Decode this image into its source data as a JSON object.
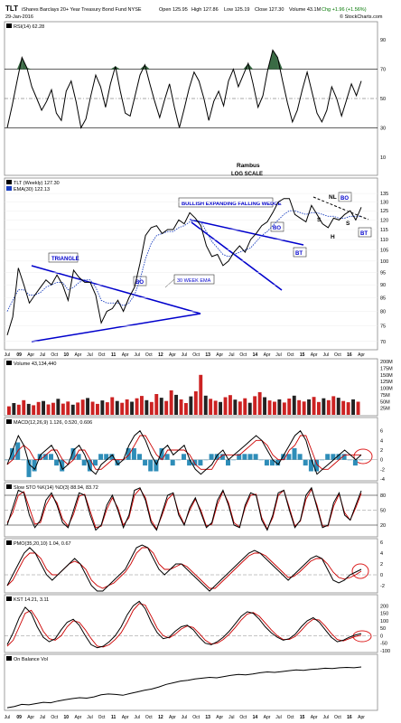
{
  "header": {
    "ticker": "TLT",
    "fund_name": "iShares Barclays 20+ Year Treasury Bond Fund NYSE",
    "date": "29-Jan-2016",
    "open": "Open 125.95",
    "high": "High 127.86",
    "low": "Low 125.19",
    "close": "Close 127.30",
    "volume": "Volume 43.1M",
    "change": "Chg +1.96 (+1.56%)",
    "credit": "© StockCharts.com"
  },
  "annotations": {
    "author": "Rambus",
    "scale": "LOG SCALE",
    "triangle": "TRIANGLE",
    "bullish_wedge": "BULLISH EXPANDING FALLING WEDGE",
    "ema_label": "30 WEEK EMA",
    "bo1": "BO",
    "bo2": "BO",
    "bo3": "BO",
    "bt1": "BT",
    "bt2": "BT",
    "hs_h": "H",
    "hs_s1": "S",
    "hs_s2": "S",
    "hs_nl": "NL"
  },
  "colors": {
    "price": "#000000",
    "trendline": "#0000cc",
    "ema": "#1a3fbf",
    "signal": "#cc0000",
    "histogram": "#2e8db8",
    "vol_up": "#222222",
    "vol_down": "#cc2222",
    "rsi_fill": "#3a6b45",
    "circle": "#dd2222"
  },
  "chart_data": [
    {
      "type": "line",
      "title": "RSI(14) 62.28",
      "ylim": [
        0,
        100
      ],
      "reference_lines": [
        70,
        50,
        30
      ],
      "y_ticks": [
        "90",
        "70",
        "50",
        "30",
        "10"
      ],
      "series": [
        {
          "name": "RSI(14)",
          "values": [
            30,
            45,
            62,
            78,
            71,
            58,
            50,
            42,
            48,
            56,
            40,
            35,
            55,
            62,
            48,
            30,
            36,
            52,
            66,
            58,
            44,
            60,
            72,
            55,
            40,
            38,
            52,
            66,
            73,
            60,
            48,
            37,
            49,
            60,
            44,
            30,
            43,
            57,
            68,
            62,
            50,
            35,
            48,
            55,
            45,
            62,
            70,
            58,
            66,
            74,
            60,
            44,
            52,
            70,
            83,
            78,
            62,
            47,
            34,
            42,
            56,
            68,
            54,
            40,
            34,
            42,
            58,
            50,
            38,
            49,
            60,
            52,
            62
          ]
        }
      ]
    },
    {
      "type": "line",
      "title": "TLT (Weekly) 127.30",
      "subtitle": "EMA(30) 122.13",
      "scale": "log",
      "ylim": [
        68,
        140
      ],
      "y_ticks": [
        "135",
        "130",
        "125",
        "120",
        "115",
        "110",
        "105",
        "100",
        "95",
        "90",
        "85",
        "80",
        "75",
        "70"
      ],
      "x_tick_labels": [
        "Jul",
        "09",
        "Apr",
        "Jul",
        "Oct",
        "10",
        "Apr",
        "Jul",
        "Oct",
        "11",
        "Apr",
        "Jul",
        "Oct",
        "12",
        "Apr",
        "Jul",
        "Oct",
        "13",
        "Apr",
        "Jul",
        "Oct",
        "14",
        "Apr",
        "Jul",
        "Oct",
        "15",
        "Apr",
        "Jul",
        "Oct",
        "16",
        "Apr"
      ],
      "series": [
        {
          "name": "TLT (Weekly)",
          "values": [
            72,
            78,
            97,
            90,
            83,
            86,
            89,
            92,
            90,
            94,
            90,
            84,
            96,
            93,
            91,
            91,
            86,
            76,
            80,
            81,
            84,
            80,
            85,
            89,
            99,
            112,
            116,
            117,
            113,
            115,
            115,
            120,
            118,
            124,
            121,
            117,
            107,
            102,
            103,
            98,
            100,
            104,
            107,
            104,
            110,
            113,
            117,
            119,
            124,
            130,
            132,
            132,
            123,
            121,
            119,
            128,
            123,
            118,
            116,
            121,
            120,
            123,
            125,
            120,
            127
          ]
        },
        {
          "name": "EMA(30)",
          "values": [
            80,
            84,
            88,
            88,
            86,
            86,
            87,
            89,
            90,
            91,
            91,
            88,
            89,
            91,
            92,
            92,
            89,
            84,
            83,
            83,
            83,
            82,
            83,
            86,
            92,
            101,
            108,
            112,
            113,
            114,
            114,
            116,
            117,
            119,
            120,
            119,
            114,
            109,
            106,
            103,
            102,
            103,
            104,
            105,
            106,
            109,
            112,
            114,
            117,
            120,
            123,
            125,
            125,
            124,
            123,
            124,
            124,
            123,
            122,
            122,
            121,
            121,
            122,
            122,
            122
          ]
        }
      ]
    },
    {
      "type": "bar",
      "title": "Volume 43,134,440",
      "ylim": [
        0,
        200
      ],
      "y_ticks": [
        "200M",
        "175M",
        "150M",
        "125M",
        "100M",
        "75M",
        "50M",
        "25M"
      ],
      "series": [
        {
          "name": "Volume",
          "values": [
            32,
            44,
            38,
            55,
            41,
            36,
            48,
            52,
            39,
            45,
            60,
            42,
            50,
            38,
            46,
            57,
            63,
            49,
            41,
            54,
            47,
            66,
            52,
            45,
            58,
            49,
            62,
            71,
            55,
            48,
            78,
            64,
            52,
            92,
            75,
            58,
            44,
            69,
            88,
            150,
            72,
            60,
            53,
            48,
            66,
            74,
            57,
            50,
            62,
            45,
            70,
            85,
            66,
            54,
            49,
            58,
            46,
            61,
            72,
            55,
            50,
            58,
            67,
            48,
            62,
            55,
            70,
            64,
            52,
            47,
            58,
            49
          ]
        }
      ]
    },
    {
      "type": "line",
      "title": "MACD(12,26,9) 1.126, 0.520, 0.606",
      "ylim": [
        -4,
        8
      ],
      "y_ticks": [
        "6",
        "4",
        "2",
        "0",
        "-2",
        "-4"
      ],
      "series": [
        {
          "name": "MACD",
          "values": [
            -1,
            2,
            5,
            3,
            -1,
            -2,
            1,
            2,
            3,
            1,
            -2,
            -1,
            2,
            3,
            1,
            -2,
            -3,
            -1,
            0,
            1,
            -1,
            0,
            3,
            5,
            6,
            4,
            1,
            -1,
            2,
            3,
            1,
            2,
            3,
            0,
            -2,
            -3,
            -2,
            -1,
            1,
            2,
            0,
            1,
            2,
            3,
            4,
            5,
            4,
            2,
            0,
            -1,
            1,
            3,
            5,
            6,
            4,
            0,
            -3,
            -2,
            -1,
            0,
            1,
            2,
            1,
            0,
            1
          ]
        },
        {
          "name": "Signal",
          "values": [
            -1,
            0,
            2,
            3,
            2,
            0,
            0,
            1,
            2,
            2,
            0,
            -1,
            0,
            2,
            2,
            0,
            -2,
            -2,
            -1,
            0,
            0,
            0,
            1,
            3,
            5,
            5,
            3,
            1,
            0,
            2,
            2,
            2,
            2,
            1,
            -1,
            -2,
            -2,
            -2,
            0,
            1,
            1,
            1,
            1,
            2,
            3,
            4,
            4,
            3,
            1,
            0,
            0,
            2,
            3,
            5,
            5,
            2,
            -1,
            -2,
            -2,
            -1,
            0,
            1,
            1,
            1,
            1
          ]
        }
      ]
    },
    {
      "type": "line",
      "title": "Slow STO %K(14) %D(3) 88.94, 83.72",
      "ylim": [
        0,
        100
      ],
      "y_ticks": [
        "80",
        "50",
        "20"
      ],
      "series": [
        {
          "name": "%K",
          "values": [
            20,
            55,
            90,
            85,
            40,
            15,
            30,
            70,
            85,
            60,
            25,
            15,
            50,
            85,
            80,
            40,
            10,
            20,
            60,
            80,
            50,
            15,
            40,
            90,
            95,
            70,
            25,
            10,
            45,
            80,
            85,
            40,
            20,
            55,
            75,
            45,
            15,
            25,
            70,
            90,
            60,
            20,
            15,
            60,
            85,
            80,
            30,
            10,
            40,
            85,
            90,
            50,
            15,
            30,
            80,
            95,
            55,
            15,
            20,
            65,
            85,
            40,
            30,
            60,
            89
          ]
        },
        {
          "name": "%D",
          "values": [
            25,
            45,
            80,
            87,
            55,
            22,
            25,
            60,
            80,
            65,
            32,
            18,
            42,
            78,
            82,
            48,
            15,
            18,
            52,
            75,
            55,
            20,
            35,
            80,
            93,
            75,
            30,
            12,
            40,
            72,
            83,
            45,
            22,
            50,
            72,
            50,
            18,
            22,
            62,
            88,
            65,
            25,
            16,
            55,
            80,
            82,
            35,
            12,
            35,
            80,
            90,
            55,
            18,
            28,
            72,
            92,
            60,
            18,
            18,
            58,
            82,
            45,
            30,
            55,
            84
          ]
        }
      ]
    },
    {
      "type": "line",
      "title": "PMO(35,20,10) 1.04, 0.67",
      "ylim": [
        -3,
        6
      ],
      "y_ticks": [
        "6",
        "4",
        "2",
        "0",
        "-2"
      ],
      "series": [
        {
          "name": "PMO",
          "values": [
            -2,
            0,
            2,
            4,
            5,
            4,
            2,
            0,
            -1,
            0,
            1,
            2,
            3,
            2,
            0,
            -2,
            -3,
            -3,
            -2,
            -1,
            0,
            1,
            3,
            5,
            5.5,
            5,
            3,
            1,
            0,
            1,
            2,
            2,
            1,
            0,
            -1,
            -2,
            -3,
            -2,
            -1,
            0,
            1,
            2,
            3,
            4,
            4.5,
            4,
            3,
            2,
            1,
            0,
            -1,
            0,
            1,
            2,
            3,
            3.5,
            3,
            1,
            -1,
            -1.5,
            -1,
            0,
            0.5,
            1
          ]
        },
        {
          "name": "Signal",
          "values": [
            -2,
            -1,
            1,
            3,
            4,
            4,
            3,
            1,
            0,
            0,
            1,
            2,
            2.5,
            2,
            1,
            -1,
            -2,
            -2.5,
            -2,
            -1.5,
            -0.5,
            0.5,
            2,
            4,
            5,
            5,
            4,
            2,
            1,
            1,
            1.5,
            2,
            1.5,
            0.5,
            -0.5,
            -1.5,
            -2.5,
            -2.5,
            -1.5,
            -0.5,
            0.5,
            1.5,
            2.5,
            3.5,
            4,
            4,
            3.5,
            2.5,
            1.5,
            0.5,
            -0.5,
            -0.3,
            0.5,
            1.5,
            2.5,
            3,
            3,
            2,
            0.5,
            -0.5,
            -0.8,
            -0.5,
            0,
            0.67
          ]
        }
      ]
    },
    {
      "type": "line",
      "title": "KST 14.21, 3.11",
      "ylim": [
        -100,
        250
      ],
      "y_ticks": [
        "200",
        "150",
        "100",
        "50",
        "0",
        "-50",
        "-100"
      ],
      "series": [
        {
          "name": "KST",
          "values": [
            -60,
            20,
            120,
            190,
            150,
            60,
            -10,
            -40,
            -20,
            40,
            90,
            110,
            70,
            0,
            -60,
            -80,
            -70,
            -40,
            0,
            60,
            140,
            200,
            230,
            180,
            90,
            20,
            -20,
            -10,
            30,
            60,
            70,
            40,
            -10,
            -50,
            -60,
            -40,
            -10,
            30,
            80,
            130,
            160,
            150,
            110,
            60,
            20,
            -10,
            -30,
            -20,
            10,
            60,
            100,
            120,
            90,
            40,
            -10,
            -40,
            -30,
            -10,
            5,
            14
          ]
        },
        {
          "name": "Signal",
          "values": [
            -70,
            -30,
            60,
            150,
            170,
            110,
            30,
            -20,
            -30,
            0,
            60,
            100,
            90,
            40,
            -20,
            -70,
            -75,
            -60,
            -25,
            20,
            90,
            170,
            215,
            205,
            130,
            50,
            0,
            -15,
            10,
            45,
            65,
            55,
            15,
            -30,
            -55,
            -50,
            -25,
            10,
            55,
            105,
            145,
            155,
            130,
            85,
            40,
            0,
            -25,
            -25,
            -5,
            35,
            80,
            110,
            105,
            65,
            15,
            -25,
            -35,
            -20,
            -5,
            3
          ]
        }
      ]
    },
    {
      "type": "line",
      "title": "On Balance Vol",
      "series": [
        {
          "name": "On Balance Vol",
          "values": [
            2,
            5,
            10,
            9,
            12,
            15,
            14,
            18,
            21,
            24,
            26,
            25,
            28,
            33,
            35,
            34,
            32,
            36,
            40,
            44,
            47,
            52,
            58,
            62,
            66,
            68,
            71,
            73,
            75,
            74,
            77,
            80,
            82,
            81,
            83,
            86,
            88,
            87,
            89,
            91,
            93,
            92,
            94,
            95,
            97,
            96,
            98,
            99,
            98,
            100
          ]
        }
      ]
    }
  ]
}
